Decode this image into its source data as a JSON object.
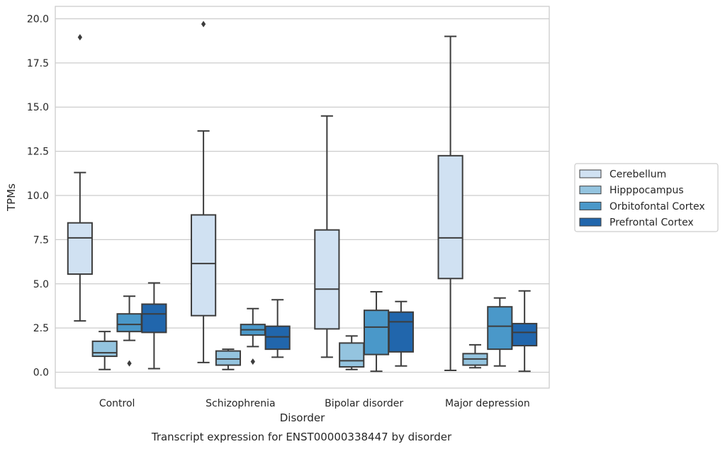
{
  "chart_data": {
    "type": "boxplot",
    "title": "Transcript expression for ENST00000338447 by disorder",
    "xlabel": "Disorder",
    "ylabel": "TPMs",
    "ylim": [
      -0.9,
      20.7
    ],
    "yticks": [
      "0.0",
      "2.5",
      "5.0",
      "7.5",
      "10.0",
      "12.5",
      "15.0",
      "17.5",
      "20.0"
    ],
    "ytick_values": [
      0,
      2.5,
      5,
      7.5,
      10,
      12.5,
      15,
      17.5,
      20
    ],
    "grid": "horizontal",
    "legend_position": "right",
    "categories": [
      "Control",
      "Schizophrenia",
      "Bipolar disorder",
      "Major depression"
    ],
    "series": [
      {
        "name": "Cerebellum",
        "color": "#d0e1f2",
        "boxes": [
          {
            "whisker_low": 2.9,
            "q1": 5.55,
            "median": 7.6,
            "q3": 8.45,
            "whisker_high": 11.3,
            "outliers": [
              18.95
            ]
          },
          {
            "whisker_low": 0.55,
            "q1": 3.2,
            "median": 6.15,
            "q3": 8.9,
            "whisker_high": 13.65,
            "outliers": [
              19.7
            ]
          },
          {
            "whisker_low": 0.85,
            "q1": 2.45,
            "median": 4.7,
            "q3": 8.05,
            "whisker_high": 14.5,
            "outliers": []
          },
          {
            "whisker_low": 0.1,
            "q1": 5.3,
            "median": 7.6,
            "q3": 12.25,
            "whisker_high": 19.0,
            "outliers": []
          }
        ]
      },
      {
        "name": "Hipppocampus",
        "color": "#94c4df",
        "boxes": [
          {
            "whisker_low": 0.15,
            "q1": 0.9,
            "median": 1.1,
            "q3": 1.75,
            "whisker_high": 2.3,
            "outliers": []
          },
          {
            "whisker_low": 0.15,
            "q1": 0.4,
            "median": 0.75,
            "q3": 1.2,
            "whisker_high": 1.3,
            "outliers": []
          },
          {
            "whisker_low": 0.15,
            "q1": 0.3,
            "median": 0.65,
            "q3": 1.65,
            "whisker_high": 2.05,
            "outliers": []
          },
          {
            "whisker_low": 0.25,
            "q1": 0.4,
            "median": 0.75,
            "q3": 1.05,
            "whisker_high": 1.55,
            "outliers": []
          }
        ]
      },
      {
        "name": "Orbitofontal Cortex",
        "color": "#4a98c9",
        "boxes": [
          {
            "whisker_low": 1.8,
            "q1": 2.3,
            "median": 2.7,
            "q3": 3.3,
            "whisker_high": 4.3,
            "outliers": [
              0.5
            ]
          },
          {
            "whisker_low": 1.45,
            "q1": 2.1,
            "median": 2.4,
            "q3": 2.7,
            "whisker_high": 3.6,
            "outliers": [
              0.6
            ]
          },
          {
            "whisker_low": 0.05,
            "q1": 1.0,
            "median": 2.55,
            "q3": 3.5,
            "whisker_high": 4.55,
            "outliers": []
          },
          {
            "whisker_low": 0.35,
            "q1": 1.3,
            "median": 2.6,
            "q3": 3.7,
            "whisker_high": 4.2,
            "outliers": []
          }
        ]
      },
      {
        "name": "Prefrontal Cortex",
        "color": "#2166ac",
        "boxes": [
          {
            "whisker_low": 0.2,
            "q1": 2.25,
            "median": 3.3,
            "q3": 3.85,
            "whisker_high": 5.05,
            "outliers": []
          },
          {
            "whisker_low": 0.85,
            "q1": 1.3,
            "median": 2.0,
            "q3": 2.6,
            "whisker_high": 4.1,
            "outliers": []
          },
          {
            "whisker_low": 0.35,
            "q1": 1.15,
            "median": 2.85,
            "q3": 3.4,
            "whisker_high": 4.0,
            "outliers": []
          },
          {
            "whisker_low": 0.05,
            "q1": 1.5,
            "median": 2.25,
            "q3": 2.75,
            "whisker_high": 4.6,
            "outliers": []
          }
        ]
      }
    ]
  }
}
